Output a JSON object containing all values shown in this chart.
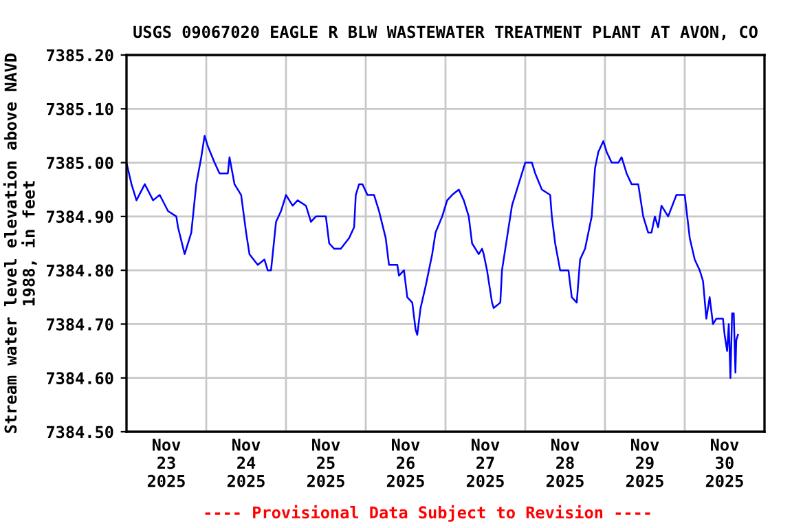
{
  "chart_data": {
    "type": "line",
    "title": "USGS 09067020 EAGLE R BLW WASTEWATER TREATMENT PLANT AT AVON, CO",
    "ylabel": "Stream water level elevation above NAVD\n1988, in feet",
    "annotations": [
      "---- Provisional Data Subject to Revision ----"
    ],
    "x": [
      "2025-11-23T00:00",
      "2025-11-23T01:30",
      "2025-11-23T03:00",
      "2025-11-23T05:30",
      "2025-11-23T08:00",
      "2025-11-23T10:00",
      "2025-11-23T12:30",
      "2025-11-23T15:00",
      "2025-11-23T15:30",
      "2025-11-23T17:30",
      "2025-11-23T19:30",
      "2025-11-23T21:00",
      "2025-11-23T22:30",
      "2025-11-23T23:30",
      "2025-11-24T00:30",
      "2025-11-24T02:30",
      "2025-11-24T04:00",
      "2025-11-24T06:30",
      "2025-11-24T07:00",
      "2025-11-24T08:30",
      "2025-11-24T10:30",
      "2025-11-24T12:00",
      "2025-11-24T13:00",
      "2025-11-24T15:30",
      "2025-11-24T17:30",
      "2025-11-24T18:30",
      "2025-11-24T19:30",
      "2025-11-24T21:00",
      "2025-11-24T22:30",
      "2025-11-25T00:00",
      "2025-11-25T02:00",
      "2025-11-25T03:30",
      "2025-11-25T06:00",
      "2025-11-25T07:30",
      "2025-11-25T09:00",
      "2025-11-25T12:00",
      "2025-11-25T13:00",
      "2025-11-25T14:30",
      "2025-11-25T16:30",
      "2025-11-25T19:00",
      "2025-11-25T20:30",
      "2025-11-25T21:00",
      "2025-11-25T22:00",
      "2025-11-25T23:00",
      "2025-11-26T00:30",
      "2025-11-26T02:30",
      "2025-11-26T04:00",
      "2025-11-26T06:00",
      "2025-11-26T07:00",
      "2025-11-26T09:30",
      "2025-11-26T10:00",
      "2025-11-26T11:30",
      "2025-11-26T12:30",
      "2025-11-26T14:00",
      "2025-11-26T15:00",
      "2025-11-26T15:30",
      "2025-11-26T16:30",
      "2025-11-26T18:00",
      "2025-11-26T20:00",
      "2025-11-26T21:00",
      "2025-11-26T23:00",
      "2025-11-27T00:30",
      "2025-11-27T02:00",
      "2025-11-27T04:00",
      "2025-11-27T05:30",
      "2025-11-27T07:00",
      "2025-11-27T08:00",
      "2025-11-27T10:00",
      "2025-11-27T11:00",
      "2025-11-27T11:30",
      "2025-11-27T12:30",
      "2025-11-27T14:00",
      "2025-11-27T14:30",
      "2025-11-27T16:30",
      "2025-11-27T17:00",
      "2025-11-27T18:30",
      "2025-11-27T20:00",
      "2025-11-27T21:30",
      "2025-11-27T23:00",
      "2025-11-28T00:00",
      "2025-11-28T02:00",
      "2025-11-28T03:00",
      "2025-11-28T05:00",
      "2025-11-28T07:30",
      "2025-11-28T08:00",
      "2025-11-28T09:00",
      "2025-11-28T10:30",
      "2025-11-28T13:00",
      "2025-11-28T14:00",
      "2025-11-28T15:30",
      "2025-11-28T16:30",
      "2025-11-28T18:00",
      "2025-11-28T20:00",
      "2025-11-28T21:00",
      "2025-11-28T22:00",
      "2025-11-28T23:30",
      "2025-11-29T00:30",
      "2025-11-29T02:00",
      "2025-11-29T04:00",
      "2025-11-29T05:00",
      "2025-11-29T06:30",
      "2025-11-29T08:00",
      "2025-11-29T10:00",
      "2025-11-29T11:30",
      "2025-11-29T13:00",
      "2025-11-29T14:00",
      "2025-11-29T15:00",
      "2025-11-29T16:00",
      "2025-11-29T17:00",
      "2025-11-29T19:00",
      "2025-11-29T21:30",
      "2025-11-30T00:00",
      "2025-11-30T01:30",
      "2025-11-30T03:00",
      "2025-11-30T04:30",
      "2025-11-30T05:30",
      "2025-11-30T06:30",
      "2025-11-30T07:30",
      "2025-11-30T08:30",
      "2025-11-30T09:30",
      "2025-11-30T11:30",
      "2025-11-30T12:00",
      "2025-11-30T12:45",
      "2025-11-30T13:15",
      "2025-11-30T13:45",
      "2025-11-30T14:15",
      "2025-11-30T14:45",
      "2025-11-30T15:15",
      "2025-11-30T15:30",
      "2025-11-30T16:00"
    ],
    "series": [
      {
        "color": "#0000ff",
        "values": [
          7385.0,
          7384.96,
          7384.93,
          7384.96,
          7384.93,
          7384.94,
          7384.91,
          7384.9,
          7384.88,
          7384.83,
          7384.87,
          7384.96,
          7385.01,
          7385.05,
          7385.03,
          7385.0,
          7384.98,
          7384.98,
          7385.01,
          7384.96,
          7384.94,
          7384.87,
          7384.83,
          7384.81,
          7384.82,
          7384.8,
          7384.8,
          7384.89,
          7384.91,
          7384.94,
          7384.92,
          7384.93,
          7384.92,
          7384.89,
          7384.9,
          7384.9,
          7384.85,
          7384.84,
          7384.84,
          7384.86,
          7384.88,
          7384.94,
          7384.96,
          7384.96,
          7384.94,
          7384.94,
          7384.91,
          7384.86,
          7384.81,
          7384.81,
          7384.79,
          7384.8,
          7384.75,
          7384.74,
          7384.69,
          7384.68,
          7384.73,
          7384.77,
          7384.83,
          7384.87,
          7384.9,
          7384.93,
          7384.94,
          7384.95,
          7384.93,
          7384.9,
          7384.85,
          7384.83,
          7384.84,
          7384.83,
          7384.8,
          7384.74,
          7384.73,
          7384.74,
          7384.8,
          7384.86,
          7384.92,
          7384.95,
          7384.98,
          7385.0,
          7385.0,
          7384.98,
          7384.95,
          7384.94,
          7384.9,
          7384.85,
          7384.8,
          7384.8,
          7384.75,
          7384.74,
          7384.82,
          7384.84,
          7384.9,
          7384.99,
          7385.02,
          7385.04,
          7385.02,
          7385.0,
          7385.0,
          7385.01,
          7384.98,
          7384.96,
          7384.96,
          7384.9,
          7384.87,
          7384.87,
          7384.9,
          7384.88,
          7384.92,
          7384.9,
          7384.94,
          7384.94,
          7384.86,
          7384.82,
          7384.8,
          7384.78,
          7384.71,
          7384.75,
          7384.7,
          7384.71,
          7384.71,
          7384.68,
          7384.65,
          7384.7,
          7384.6,
          7384.72,
          7384.72,
          7384.61,
          7384.67,
          7384.68
        ]
      }
    ],
    "xlim": [
      "2025-11-23T00:00",
      "2025-12-01T00:00"
    ],
    "xticks": [
      {
        "value": "2025-11-23T12:00",
        "label": "Nov\n23\n2025"
      },
      {
        "value": "2025-11-24T12:00",
        "label": "Nov\n24\n2025"
      },
      {
        "value": "2025-11-25T12:00",
        "label": "Nov\n25\n2025"
      },
      {
        "value": "2025-11-26T12:00",
        "label": "Nov\n26\n2025"
      },
      {
        "value": "2025-11-27T12:00",
        "label": "Nov\n27\n2025"
      },
      {
        "value": "2025-11-28T12:00",
        "label": "Nov\n28\n2025"
      },
      {
        "value": "2025-11-29T12:00",
        "label": "Nov\n29\n2025"
      },
      {
        "value": "2025-11-30T12:00",
        "label": "Nov\n30\n2025"
      },
      {
        "value": "2025-11-24T00:00",
        "label": null
      },
      {
        "value": "2025-11-25T00:00",
        "label": null
      },
      {
        "value": "2025-11-26T00:00",
        "label": null
      },
      {
        "value": "2025-11-27T00:00",
        "label": null
      },
      {
        "value": "2025-11-28T00:00",
        "label": null
      },
      {
        "value": "2025-11-29T00:00",
        "label": null
      },
      {
        "value": "2025-11-30T00:00",
        "label": null
      }
    ],
    "ylim": [
      7384.5,
      7385.2
    ],
    "yticks": [
      {
        "value": 7384.5,
        "label": "7384.50"
      },
      {
        "value": 7384.6,
        "label": "7384.60"
      },
      {
        "value": 7384.7,
        "label": "7384.70"
      },
      {
        "value": 7384.8,
        "label": "7384.80"
      },
      {
        "value": 7384.9,
        "label": "7384.90"
      },
      {
        "value": 7385.0,
        "label": "7385.00"
      },
      {
        "value": 7385.1,
        "label": "7385.10"
      },
      {
        "value": 7385.2,
        "label": "7385.20"
      }
    ],
    "grid": true,
    "legend": false,
    "marker": "none",
    "line_style": "solid"
  }
}
